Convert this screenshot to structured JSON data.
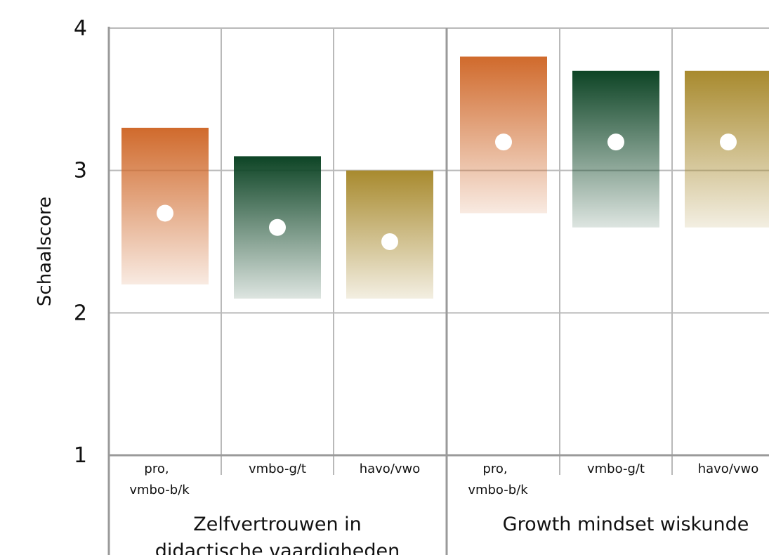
{
  "chart_data": {
    "type": "range-bar",
    "ylabel": "Schaalscore",
    "ylim": [
      1,
      4
    ],
    "yticks": [
      "1",
      "2",
      "3",
      "4"
    ],
    "grid": true,
    "colors": {
      "pro, vmbo-b/k": "#d06a2c",
      "vmbo-g/t": "#0d4425",
      "havo/vwo": "#a88a2e"
    },
    "groups": [
      {
        "label": "Zelfvertrouwen in didactische vaardigheden",
        "label_lines": [
          "Zelfvertrouwen in",
          "didactische vaardigheden"
        ],
        "categories": [
          {
            "label_lines": [
              "pro,",
              "vmbo-b/k"
            ],
            "series": "pro, vmbo-b/k",
            "low": 2.2,
            "high": 3.3,
            "mean": 2.7
          },
          {
            "label_lines": [
              "vmbo-g/t"
            ],
            "series": "vmbo-g/t",
            "low": 2.1,
            "high": 3.1,
            "mean": 2.6
          },
          {
            "label_lines": [
              "havo/vwo"
            ],
            "series": "havo/vwo",
            "low": 2.1,
            "high": 3.0,
            "mean": 2.5
          }
        ]
      },
      {
        "label": "Growth mindset wiskunde",
        "label_lines": [
          "Growth mindset wiskunde"
        ],
        "categories": [
          {
            "label_lines": [
              "pro,",
              "vmbo-b/k"
            ],
            "series": "pro, vmbo-b/k",
            "low": 2.7,
            "high": 3.8,
            "mean": 3.2
          },
          {
            "label_lines": [
              "vmbo-g/t"
            ],
            "series": "vmbo-g/t",
            "low": 2.6,
            "high": 3.7,
            "mean": 3.2
          },
          {
            "label_lines": [
              "havo/vwo"
            ],
            "series": "havo/vwo",
            "low": 2.6,
            "high": 3.7,
            "mean": 3.2
          }
        ]
      }
    ]
  }
}
